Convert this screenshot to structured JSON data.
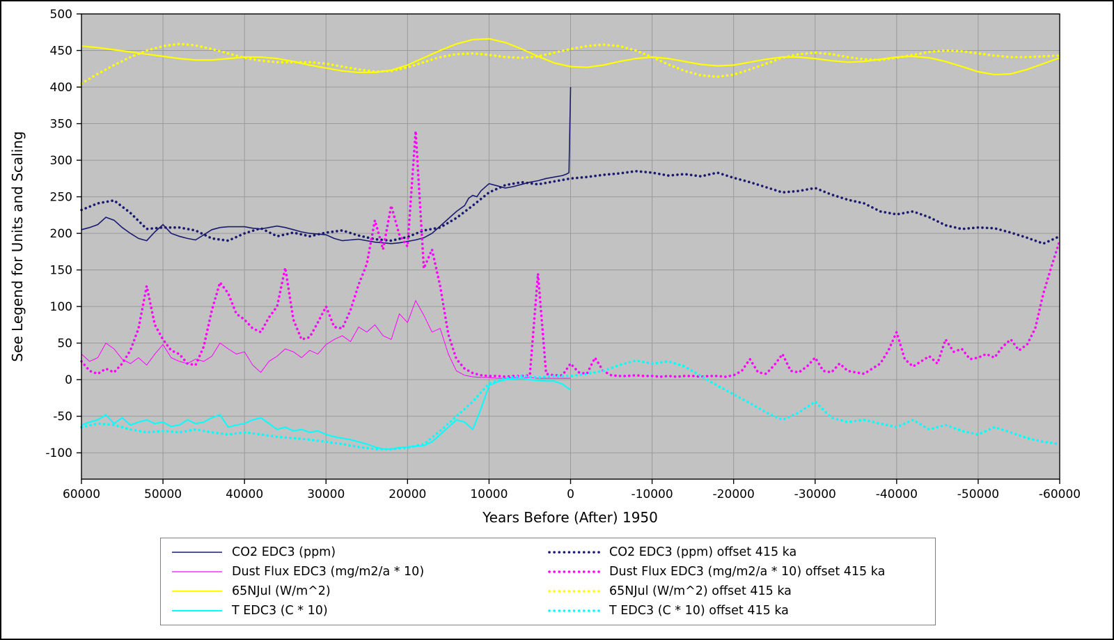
{
  "chart_data": {
    "type": "line",
    "title": "",
    "xlabel": "Years Before (After) 1950",
    "ylabel": "See Legend for Units and Scaling",
    "xlim": [
      60000,
      -60000
    ],
    "ylim": [
      -136,
      500
    ],
    "grid": true,
    "legend_position": "bottom",
    "colors": {
      "figure_bg": "#ffffff",
      "plot_bg": "#c2c2c2",
      "grid": "#9a9a9a",
      "spine": "#000000",
      "legend_edge": "#7f7f7f",
      "navy": "#191970",
      "magenta": "#ff00ff",
      "yellow": "#ffff00",
      "cyan": "#00ffff"
    },
    "xticks": {
      "values": [
        60000,
        50000,
        40000,
        30000,
        20000,
        10000,
        0,
        -10000,
        -20000,
        -30000,
        -40000,
        -50000,
        -60000
      ],
      "labels": [
        "60000",
        "50000",
        "40000",
        "30000",
        "20000",
        "10000",
        "0",
        "-10000",
        "-20000",
        "-30000",
        "-40000",
        "-50000",
        "-60000"
      ]
    },
    "yticks": {
      "values": [
        -100,
        -50,
        0,
        50,
        100,
        150,
        200,
        250,
        300,
        350,
        400,
        450,
        500
      ],
      "labels": [
        "-100",
        "-50",
        "0",
        "50",
        "100",
        "150",
        "200",
        "250",
        "300",
        "350",
        "400",
        "450",
        "500"
      ]
    },
    "series": [
      {
        "label": "CO2 EDC3 (ppm)",
        "color": "#191970",
        "style": "solid",
        "width": 1.6,
        "x": [
          60000,
          59000,
          58000,
          57000,
          56000,
          55000,
          54000,
          53000,
          52000,
          51000,
          50000,
          49000,
          48000,
          47000,
          46000,
          45000,
          44000,
          43000,
          42000,
          41000,
          40000,
          39000,
          38000,
          37000,
          36000,
          35000,
          34000,
          33000,
          32000,
          31000,
          30000,
          29000,
          28000,
          27000,
          26000,
          25000,
          24000,
          23000,
          22000,
          21000,
          20000,
          19000,
          18000,
          17000,
          16000,
          15000,
          14000,
          13000,
          12500,
          12000,
          11500,
          11000,
          10000,
          9000,
          8000,
          7000,
          6000,
          5000,
          4000,
          3000,
          2000,
          1000,
          500,
          200,
          0
        ],
        "y": [
          205,
          208,
          212,
          222,
          218,
          208,
          200,
          193,
          190,
          202,
          212,
          200,
          196,
          193,
          191,
          198,
          205,
          208,
          209,
          209,
          209,
          207,
          206,
          208,
          210,
          208,
          205,
          202,
          200,
          199,
          198,
          193,
          190,
          191,
          192,
          190,
          188,
          187,
          186,
          187,
          189,
          191,
          194,
          200,
          210,
          220,
          230,
          238,
          248,
          252,
          250,
          258,
          268,
          265,
          262,
          264,
          267,
          270,
          272,
          275,
          277,
          279,
          281,
          283,
          400
        ]
      },
      {
        "label": "Dust Flux EDC3 (mg/m2/a * 10)",
        "color": "#ff00ff",
        "style": "solid",
        "width": 1.0,
        "x": {
          "start": 60000,
          "step": -1000,
          "count": 61
        },
        "y": [
          35,
          25,
          30,
          50,
          42,
          28,
          22,
          30,
          20,
          35,
          48,
          30,
          25,
          22,
          28,
          25,
          32,
          50,
          42,
          35,
          38,
          20,
          10,
          25,
          32,
          42,
          38,
          30,
          40,
          35,
          48,
          55,
          60,
          52,
          72,
          65,
          75,
          60,
          55,
          90,
          78,
          108,
          88,
          65,
          70,
          35,
          12,
          6,
          4,
          3,
          3,
          2,
          2,
          3,
          2,
          3,
          2,
          2,
          2,
          2,
          2
        ]
      },
      {
        "label": "65NJul (W/m^2)",
        "color": "#ffff00",
        "style": "solid",
        "width": 2.2,
        "x": {
          "start": 60000,
          "step": -2000,
          "count": 61
        },
        "y": [
          456,
          454,
          451,
          448,
          445,
          442,
          439,
          437,
          437,
          439,
          441,
          441,
          439,
          435,
          430,
          426,
          422,
          420,
          420,
          423,
          430,
          440,
          450,
          459,
          465,
          466,
          461,
          452,
          442,
          433,
          428,
          427,
          430,
          435,
          439,
          441,
          439,
          435,
          431,
          429,
          430,
          434,
          438,
          441,
          441,
          439,
          436,
          434,
          435,
          438,
          441,
          442,
          440,
          435,
          428,
          421,
          417,
          418,
          424,
          432,
          440
        ]
      },
      {
        "label": "T EDC3 (C * 10)",
        "color": "#00ffff",
        "style": "solid",
        "width": 2.0,
        "x": {
          "start": 60000,
          "step": -1000,
          "count": 61
        },
        "y": [
          -62,
          -58,
          -55,
          -48,
          -60,
          -52,
          -62,
          -58,
          -55,
          -60,
          -58,
          -64,
          -62,
          -55,
          -60,
          -58,
          -52,
          -48,
          -65,
          -62,
          -60,
          -55,
          -52,
          -60,
          -68,
          -65,
          -70,
          -68,
          -72,
          -70,
          -75,
          -78,
          -80,
          -82,
          -85,
          -88,
          -92,
          -95,
          -95,
          -93,
          -92,
          -91,
          -90,
          -85,
          -75,
          -65,
          -55,
          -58,
          -68,
          -40,
          -8,
          -3,
          0,
          1,
          2,
          0,
          -1,
          -2,
          -2,
          -6,
          -14
        ]
      },
      {
        "label": "CO2 EDC3 (ppm) offset 415 ka",
        "color": "#191970",
        "style": "dotted",
        "width": 3.6,
        "x": {
          "start": 60000,
          "step": -2000,
          "count": 61
        },
        "y": [
          232,
          241,
          245,
          228,
          206,
          208,
          208,
          204,
          193,
          190,
          200,
          207,
          196,
          201,
          196,
          201,
          204,
          197,
          192,
          190,
          195,
          204,
          208,
          221,
          238,
          256,
          266,
          270,
          267,
          271,
          275,
          277,
          280,
          282,
          285,
          283,
          279,
          281,
          278,
          283,
          276,
          270,
          263,
          256,
          258,
          262,
          253,
          246,
          241,
          230,
          226,
          230,
          222,
          211,
          206,
          208,
          207,
          201,
          194,
          186,
          196
        ]
      },
      {
        "label": "Dust Flux EDC3 (mg/m2/a * 10) offset 415 ka",
        "color": "#ff00ff",
        "style": "dotted",
        "width": 3.6,
        "x": {
          "start": 60000,
          "step": -1000,
          "count": 121
        },
        "y": [
          25,
          12,
          8,
          15,
          10,
          22,
          40,
          70,
          128,
          75,
          55,
          40,
          35,
          22,
          20,
          45,
          95,
          133,
          118,
          90,
          82,
          70,
          65,
          85,
          100,
          153,
          82,
          55,
          58,
          78,
          100,
          72,
          70,
          95,
          130,
          158,
          218,
          178,
          238,
          198,
          182,
          340,
          152,
          178,
          128,
          62,
          28,
          15,
          9,
          6,
          5,
          5,
          4,
          5,
          5,
          6,
          145,
          8,
          6,
          6,
          22,
          10,
          8,
          30,
          12,
          6,
          5,
          5,
          6,
          5,
          5,
          4,
          5,
          4,
          5,
          5,
          4,
          5,
          5,
          4,
          6,
          12,
          28,
          10,
          8,
          20,
          35,
          12,
          10,
          18,
          30,
          12,
          10,
          22,
          12,
          10,
          8,
          15,
          22,
          40,
          65,
          28,
          18,
          25,
          32,
          22,
          55,
          38,
          42,
          28,
          30,
          35,
          30,
          45,
          55,
          40,
          48,
          70,
          118,
          155,
          190
        ]
      },
      {
        "label": "65NJul (W/m^2) offset 415 ka",
        "color": "#ffff00",
        "style": "dotted",
        "width": 3.6,
        "x": {
          "start": 60000,
          "step": -2000,
          "count": 61
        },
        "y": [
          405,
          418,
          430,
          441,
          450,
          456,
          459,
          457,
          452,
          446,
          440,
          436,
          434,
          434,
          434,
          432,
          428,
          424,
          421,
          422,
          427,
          434,
          441,
          445,
          446,
          444,
          441,
          440,
          442,
          447,
          452,
          456,
          458,
          456,
          450,
          441,
          431,
          422,
          416,
          414,
          417,
          424,
          432,
          440,
          445,
          447,
          445,
          441,
          438,
          437,
          440,
          444,
          448,
          450,
          449,
          446,
          443,
          441,
          441,
          442,
          443
        ]
      },
      {
        "label": "T EDC3 (C * 10) offset 415 ka",
        "color": "#00ffff",
        "style": "dotted",
        "width": 3.6,
        "x": {
          "start": 60000,
          "step": -2000,
          "count": 61
        },
        "y": [
          -65,
          -60,
          -62,
          -68,
          -72,
          -70,
          -72,
          -68,
          -72,
          -75,
          -72,
          -75,
          -78,
          -80,
          -82,
          -85,
          -88,
          -92,
          -95,
          -95,
          -93,
          -88,
          -70,
          -50,
          -30,
          -5,
          2,
          5,
          3,
          5,
          5,
          8,
          12,
          20,
          26,
          22,
          25,
          18,
          5,
          -8,
          -20,
          -32,
          -45,
          -55,
          -45,
          -30,
          -52,
          -58,
          -55,
          -60,
          -65,
          -55,
          -68,
          -62,
          -70,
          -75,
          -65,
          -72,
          -80,
          -85,
          -88
        ]
      }
    ]
  }
}
